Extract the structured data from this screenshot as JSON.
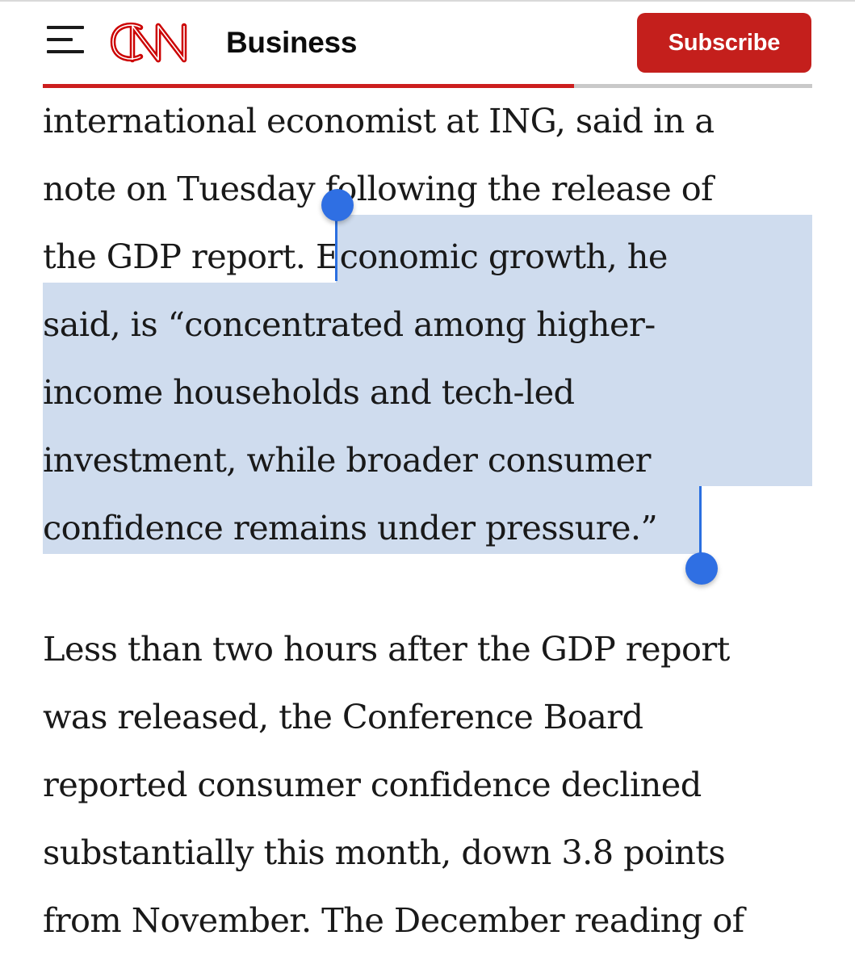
{
  "header": {
    "menu_icon": "hamburger-menu-icon",
    "logo_text": "CNN",
    "section": "Business",
    "subscribe_label": "Subscribe",
    "brand_color": "#c41f1c",
    "read_progress": 0.69
  },
  "article": {
    "paragraph1": {
      "line1": "international economist at ING, said in a",
      "line2": "note on Tuesday following the release of",
      "line3_plain": "the GDP report. ",
      "line3_selected": "Economic growth, he",
      "line4": "said, is “concentrated among higher-",
      "line5": "income households and tech-led",
      "line6": "investment, while broader consumer",
      "line7_selected": "confidence remains under pressure.",
      "line7_plain": "”"
    },
    "paragraph2": {
      "line1": "Less than two hours after the GDP report",
      "line2": "was released, the Conference Board",
      "line3": "reported consumer confidence declined",
      "line4": "substantially this month, down 3.8 points",
      "line5": "from November. The December reading of"
    }
  },
  "selection": {
    "highlight_color": "#cfdcee",
    "handle_color": "#2f6fe3"
  }
}
